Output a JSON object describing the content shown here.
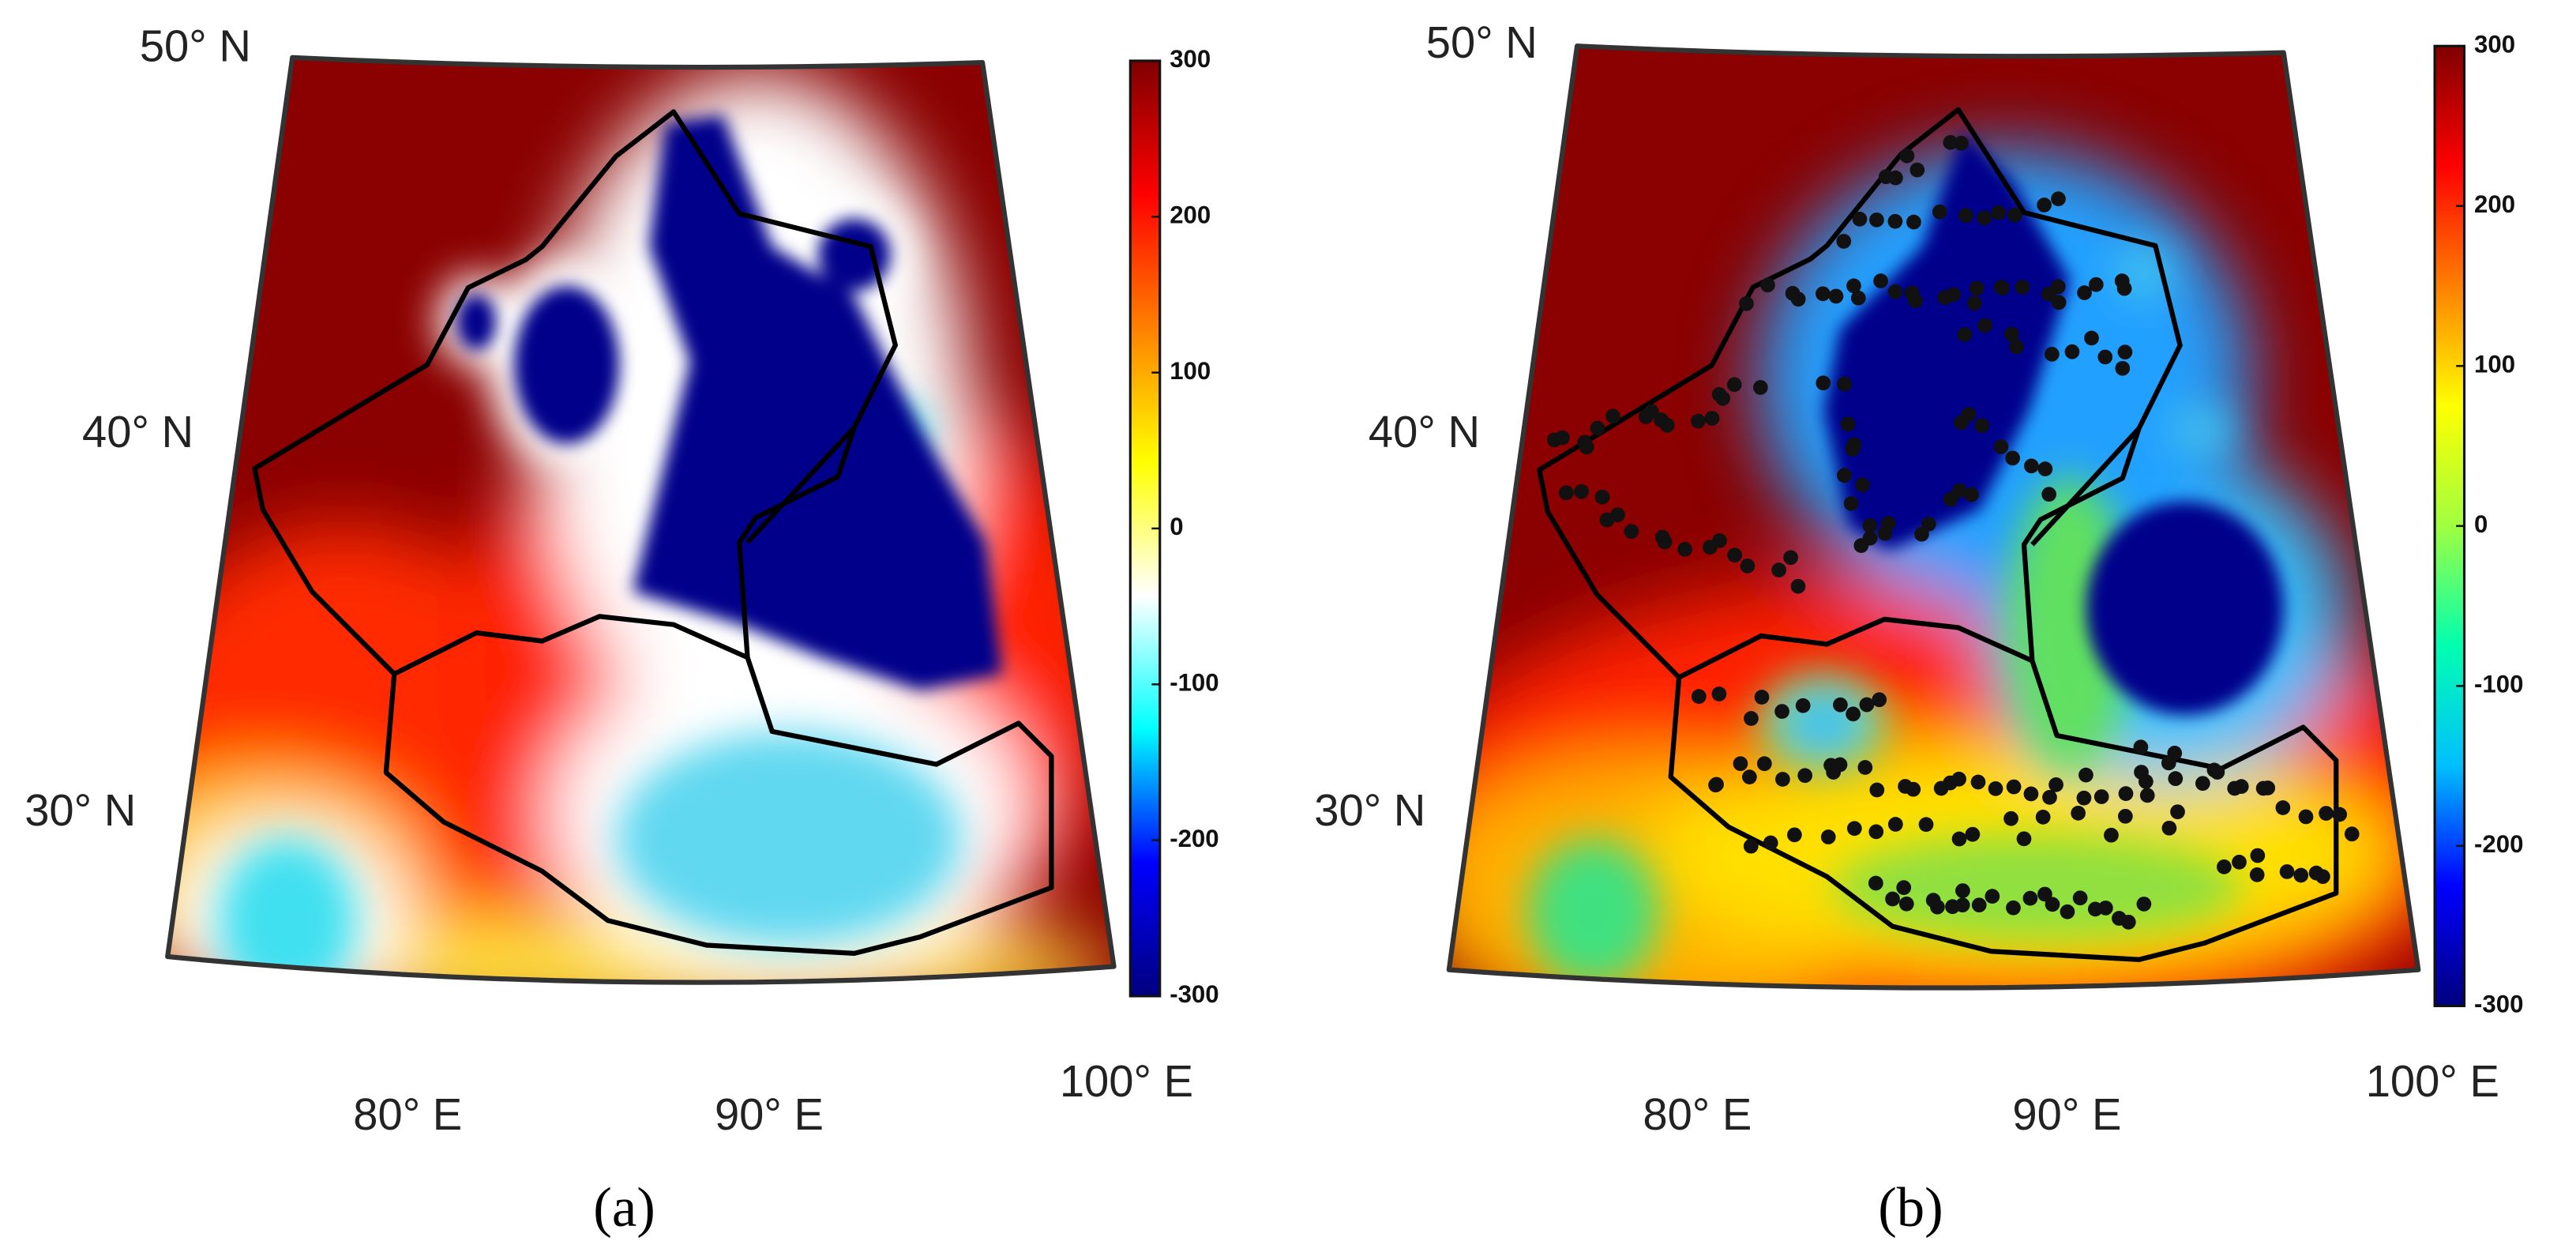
{
  "panels": [
    {
      "caption": "(a)",
      "lat_labels": [
        "50° N",
        "40° N",
        "30° N"
      ],
      "lon_labels": [
        "80° E",
        "90° E",
        "100° E"
      ],
      "colorbar": {
        "lim": [
          -300,
          300
        ],
        "ticks": [
          300,
          200,
          100,
          0,
          -100,
          -200,
          -300
        ],
        "colormap": [
          "#00007f",
          "#0000ff",
          "#00ffff",
          "#ffffff",
          "#ffff00",
          "#ff8000",
          "#ff0000",
          "#7f0000"
        ]
      }
    },
    {
      "caption": "(b)",
      "lat_labels": [
        "50° N",
        "40° N",
        "30° N"
      ],
      "lon_labels": [
        "80° E",
        "90° E",
        "100° E"
      ],
      "colorbar": {
        "lim": [
          -300,
          300
        ],
        "ticks": [
          300,
          200,
          100,
          0,
          -100,
          -200,
          -300
        ],
        "colormap": [
          "#00007f",
          "#0000ff",
          "#00bfff",
          "#00ffb0",
          "#a0ff40",
          "#ffff00",
          "#ff8000",
          "#ff0000",
          "#7f0000"
        ]
      }
    }
  ]
}
